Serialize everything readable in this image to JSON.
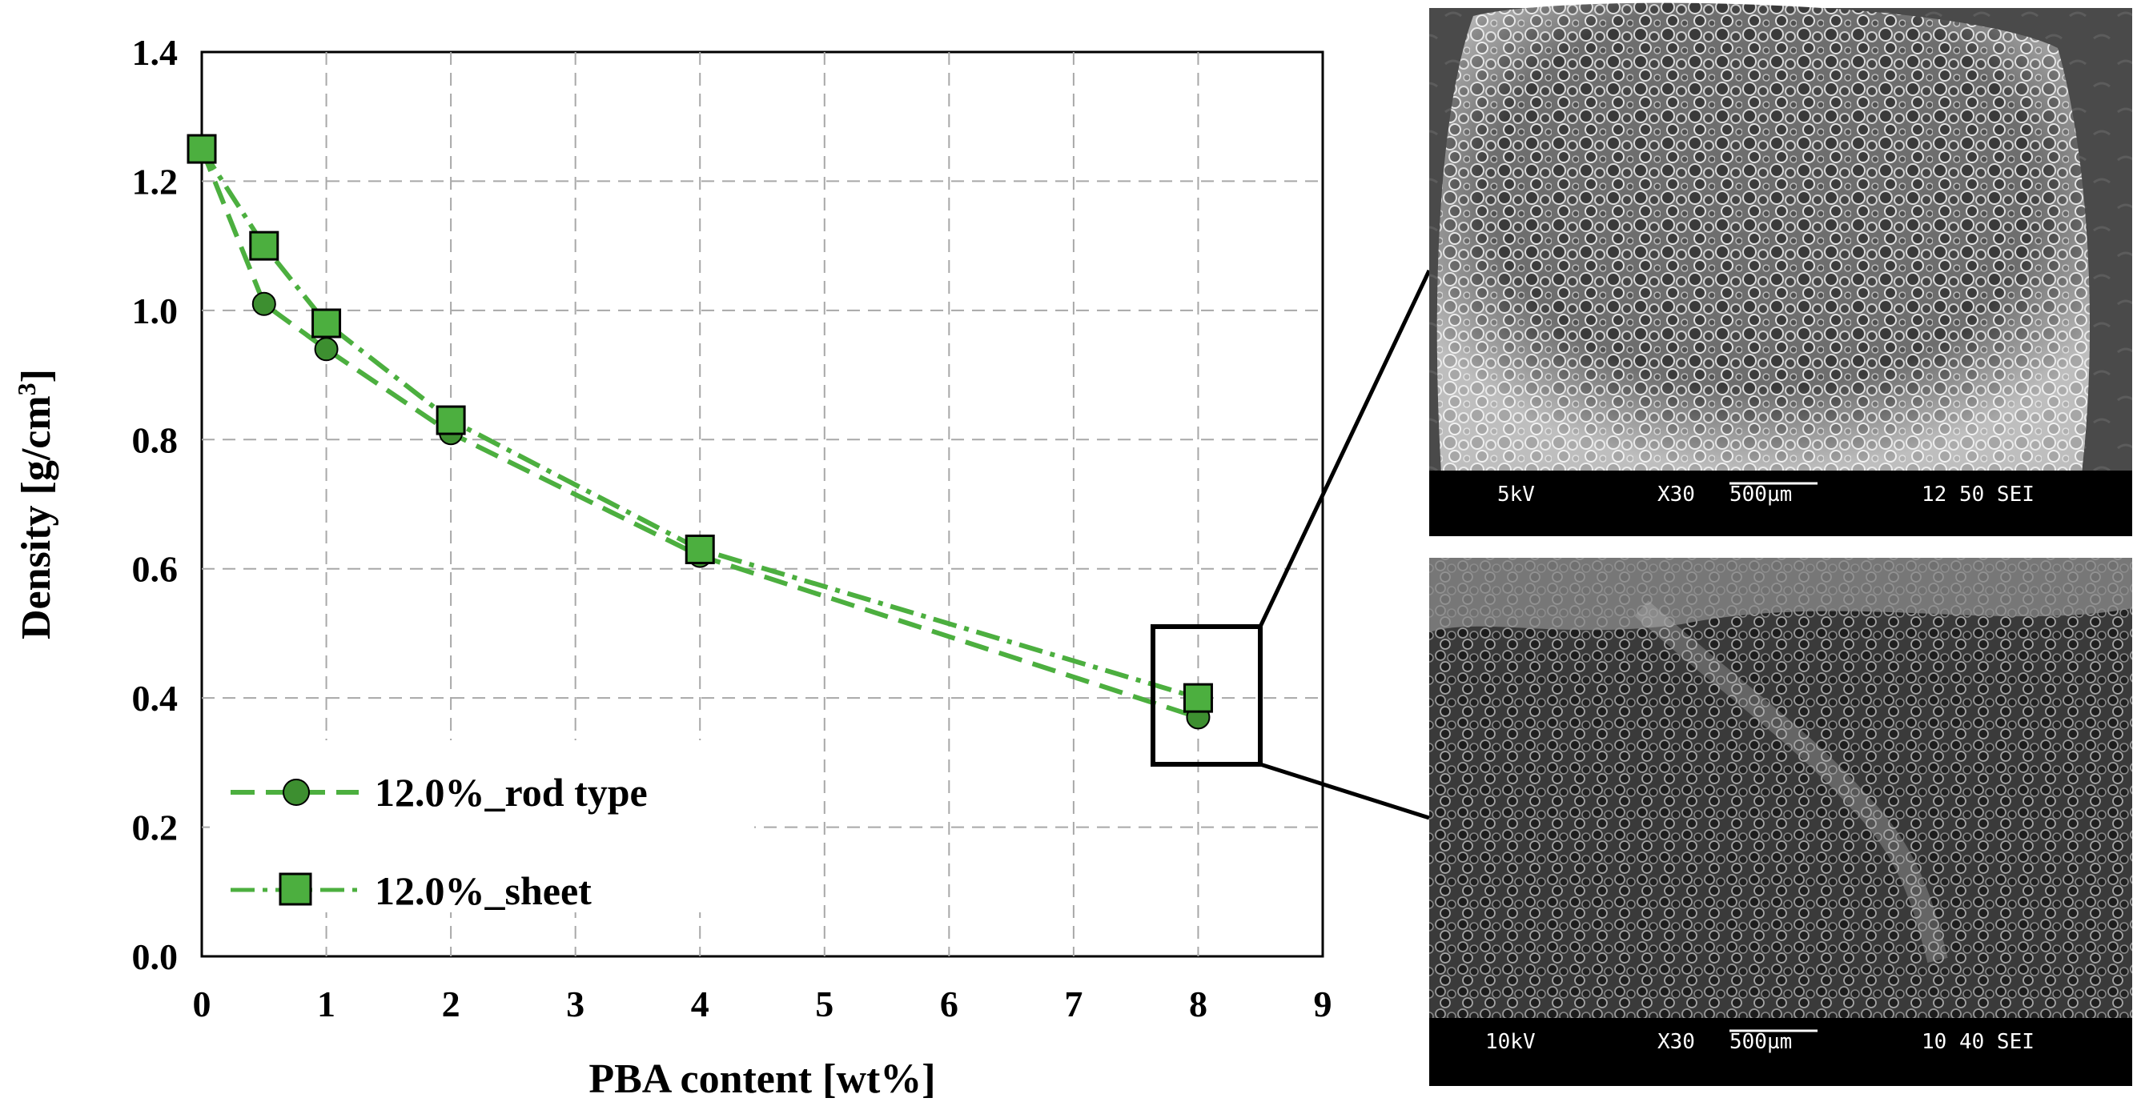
{
  "chart_data": {
    "type": "line",
    "xlabel": "PBA content [wt%]",
    "ylabel_main": "Density [g/cm",
    "ylabel_sup": "3",
    "ylabel_end": "]",
    "xlim": [
      0,
      9
    ],
    "ylim": [
      0,
      1.4
    ],
    "x_ticks": [
      "0",
      "1",
      "2",
      "3",
      "4",
      "5",
      "6",
      "7",
      "8",
      "9"
    ],
    "y_ticks": [
      "0.0",
      "0.2",
      "0.4",
      "0.6",
      "0.8",
      "1.0",
      "1.2",
      "1.4"
    ],
    "grid": true,
    "legend_placement": "bottom-left",
    "series": [
      {
        "name": "12.0%_rod type",
        "marker": "circle",
        "color": "#4caf3f",
        "x": [
          0,
          0.5,
          1,
          2,
          4,
          8
        ],
        "y": [
          1.25,
          1.01,
          0.94,
          0.81,
          0.62,
          0.37
        ]
      },
      {
        "name": "12.0%_sheet",
        "marker": "square",
        "color": "#4caf3f",
        "x": [
          0,
          0.5,
          1,
          2,
          4,
          8
        ],
        "y": [
          1.25,
          1.1,
          0.98,
          0.83,
          0.63,
          0.4
        ]
      }
    ]
  },
  "sem_images": [
    {
      "voltage": "5kV",
      "magnification": "X30",
      "scale": "500µm",
      "code": "12 50 SEI"
    },
    {
      "voltage": "10kV",
      "magnification": "X30",
      "scale": "500µm",
      "code": "10 40 SEI"
    }
  ]
}
